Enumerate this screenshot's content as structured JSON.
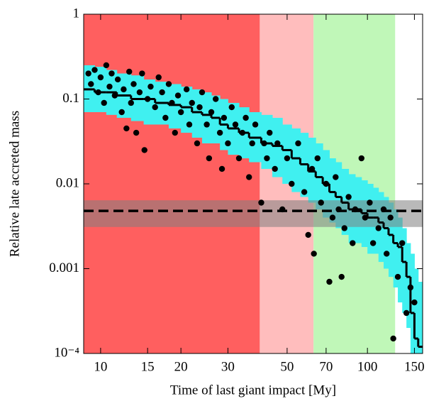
{
  "chart_data": {
    "type": "scatter",
    "x_label": "Time of last giant impact [My]",
    "y_label": "Relative late accreted mass",
    "xscale": "log",
    "yscale": "log",
    "xlim": [
      8.64,
      161
    ],
    "ylim": [
      0.0001,
      1
    ],
    "xticks": [
      10,
      15,
      20,
      30,
      50,
      70,
      100,
      150
    ],
    "yticks": [
      {
        "value": 0.0001,
        "label": "10⁻⁴"
      },
      0.001,
      0.01,
      0.1,
      1
    ],
    "regions": [
      {
        "from": 8.64,
        "to": 39.5,
        "color": "#ff5f5f"
      },
      {
        "from": 39.5,
        "to": 62.8,
        "color": "#ffbdbd"
      },
      {
        "from": 62.8,
        "to": 127,
        "color": "#c0f7b8"
      }
    ],
    "hband": {
      "value": 0.0048,
      "low": 0.0031,
      "high": 0.0064,
      "color": "#808080"
    },
    "spread": {
      "color": "#40f0f0",
      "edges": [
        8.64,
        9.5,
        10.5,
        11.5,
        13,
        14.5,
        16,
        18,
        20,
        22,
        24,
        26,
        28,
        30,
        33,
        36,
        40,
        44,
        48,
        52,
        56,
        60,
        64,
        68,
        72,
        76,
        80,
        85,
        90,
        95,
        100,
        105,
        110,
        115,
        120,
        125,
        130,
        135,
        140,
        145,
        150,
        155,
        161
      ],
      "median": [
        0.13,
        0.12,
        0.12,
        0.11,
        0.1,
        0.1,
        0.09,
        0.085,
        0.08,
        0.07,
        0.065,
        0.06,
        0.05,
        0.045,
        0.04,
        0.035,
        0.03,
        0.028,
        0.025,
        0.02,
        0.017,
        0.014,
        0.012,
        0.01,
        0.008,
        0.007,
        0.006,
        0.005,
        0.005,
        0.0045,
        0.004,
        0.004,
        0.0035,
        0.003,
        0.0025,
        0.002,
        0.0018,
        0.0012,
        0.0008,
        0.0003,
        0.00015,
        0.00012
      ],
      "low": [
        0.07,
        0.07,
        0.065,
        0.06,
        0.055,
        0.05,
        0.05,
        0.045,
        0.04,
        0.035,
        0.03,
        0.03,
        0.025,
        0.022,
        0.02,
        0.018,
        0.015,
        0.012,
        0.01,
        0.008,
        0.007,
        0.006,
        0.005,
        0.004,
        0.0035,
        0.003,
        0.0025,
        0.002,
        0.002,
        0.0018,
        0.0015,
        0.0015,
        0.0012,
        0.001,
        0.0008,
        0.0006,
        0.0004,
        0.0003,
        0.0002,
        0.0001,
        0.0001,
        0.0001
      ],
      "high": [
        0.25,
        0.24,
        0.22,
        0.2,
        0.19,
        0.17,
        0.16,
        0.15,
        0.14,
        0.13,
        0.12,
        0.11,
        0.1,
        0.09,
        0.08,
        0.07,
        0.065,
        0.06,
        0.05,
        0.045,
        0.04,
        0.035,
        0.03,
        0.025,
        0.02,
        0.018,
        0.015,
        0.013,
        0.012,
        0.011,
        0.01,
        0.009,
        0.008,
        0.007,
        0.006,
        0.005,
        0.004,
        0.003,
        0.002,
        0.0015,
        0.001,
        0.0007
      ]
    },
    "points": {
      "color": "#000000",
      "x": [
        9,
        9.2,
        9.5,
        9.8,
        10,
        10.3,
        10.5,
        10.8,
        11,
        11.3,
        11.6,
        12,
        12.2,
        12.5,
        12.8,
        13,
        13.3,
        13.6,
        14,
        14.3,
        14.6,
        15,
        15.4,
        16,
        16.5,
        17,
        17.5,
        18,
        18.5,
        19,
        19.5,
        20,
        21,
        21.5,
        22,
        23,
        23.5,
        24,
        25,
        25.5,
        26,
        27,
        28,
        28.5,
        29,
        30,
        31,
        32,
        33,
        34,
        35,
        36,
        37,
        38,
        40,
        41,
        42,
        43,
        45,
        46,
        48,
        50,
        52,
        55,
        58,
        60,
        62,
        63,
        65,
        67,
        70,
        72,
        74,
        76,
        78,
        80,
        82,
        85,
        88,
        90,
        95,
        98,
        102,
        105,
        110,
        115,
        118,
        122,
        125,
        130,
        135,
        140,
        145,
        150
      ],
      "y": [
        0.2,
        0.15,
        0.22,
        0.12,
        0.18,
        0.09,
        0.25,
        0.14,
        0.2,
        0.11,
        0.17,
        0.07,
        0.13,
        0.045,
        0.21,
        0.09,
        0.15,
        0.04,
        0.12,
        0.2,
        0.025,
        0.1,
        0.14,
        0.08,
        0.18,
        0.12,
        0.06,
        0.15,
        0.09,
        0.04,
        0.11,
        0.07,
        0.13,
        0.05,
        0.09,
        0.03,
        0.08,
        0.12,
        0.05,
        0.02,
        0.07,
        0.1,
        0.04,
        0.015,
        0.06,
        0.03,
        0.08,
        0.05,
        0.02,
        0.04,
        0.06,
        0.012,
        0.03,
        0.05,
        0.006,
        0.03,
        0.02,
        0.04,
        0.015,
        0.03,
        0.005,
        0.02,
        0.01,
        0.03,
        0.008,
        0.0025,
        0.015,
        0.0015,
        0.02,
        0.006,
        0.01,
        0.0007,
        0.004,
        0.012,
        0.005,
        0.0008,
        0.003,
        0.007,
        0.002,
        0.005,
        0.02,
        0.004,
        0.006,
        0.002,
        0.003,
        0.005,
        0.0015,
        0.004,
        0.00015,
        0.0008,
        0.002,
        0.0003,
        0.0006,
        0.0004
      ]
    }
  }
}
